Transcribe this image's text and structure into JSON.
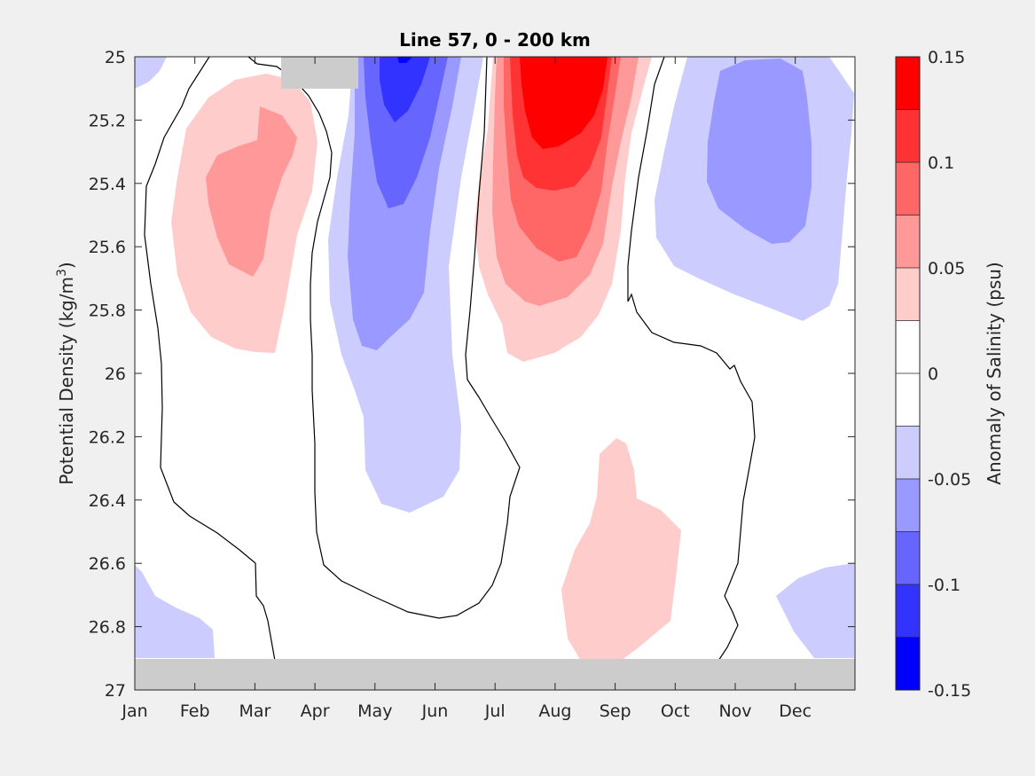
{
  "chart_data": {
    "type": "contour",
    "title": "Line 57, 0 - 200 km",
    "xlabel": "",
    "ylabel_prefix": "Potential Density (kg/m",
    "ylabel_sup": "3",
    "ylabel_suffix": ")",
    "x_ticks": [
      "Jan",
      "Feb",
      "Mar",
      "Apr",
      "May",
      "Jun",
      "Jul",
      "Aug",
      "Sep",
      "Oct",
      "Nov",
      "Dec"
    ],
    "y_ticks": [
      "25",
      "25.2",
      "25.4",
      "25.6",
      "25.8",
      "26",
      "26.2",
      "26.4",
      "26.6",
      "26.8",
      "27"
    ],
    "ylim": [
      25,
      27
    ],
    "y_reversed": true,
    "colorbar": {
      "label": "Anomaly of Salinity (psu)",
      "ticks": [
        "0.15",
        "0.1",
        "0.05",
        "0",
        "-0.05",
        "-0.1",
        "-0.15"
      ],
      "range": [
        -0.15,
        0.15
      ],
      "levels": 12,
      "colors": [
        "#ff0000",
        "#ff3333",
        "#ff6666",
        "#ff9999",
        "#ffcccc",
        "#ffffff",
        "#ffffff",
        "#ccccff",
        "#9999ff",
        "#6666ff",
        "#3333ff",
        "#0000ff"
      ]
    },
    "regions": [
      {
        "name": "positive-anomaly-feb-mar",
        "peak_month": "Mar",
        "density_range": [
          25.1,
          25.95
        ],
        "peak_value": 0.075
      },
      {
        "name": "negative-anomaly-may",
        "peak_month": "May",
        "density_range": [
          25.0,
          26.45
        ],
        "peak_value": -0.125
      },
      {
        "name": "positive-anomaly-aug",
        "peak_month": "Aug",
        "density_range": [
          25.0,
          26.0
        ],
        "peak_value": 0.15
      },
      {
        "name": "negative-anomaly-nov-dec",
        "peak_month": "Nov",
        "density_range": [
          25.0,
          25.85
        ],
        "peak_value": -0.075
      },
      {
        "name": "positive-anomaly-sep-deep",
        "peak_month": "Sep",
        "density_range": [
          26.2,
          26.9
        ],
        "peak_value": 0.03
      },
      {
        "name": "negative-anomaly-jan-deep",
        "peak_month": "Jan",
        "density_range": [
          26.6,
          26.9
        ],
        "peak_value": -0.03
      },
      {
        "name": "negative-anomaly-dec-deep",
        "peak_month": "Dec",
        "density_range": [
          26.6,
          26.9
        ],
        "peak_value": -0.03
      }
    ],
    "masked": [
      {
        "name": "no-data-bottom",
        "density_range": [
          26.9,
          27.0
        ]
      },
      {
        "name": "no-data-top-mar-apr",
        "density_range": [
          25.0,
          25.1
        ]
      }
    ],
    "mask_color": "#cccccc",
    "zero_contour_color": "#000000"
  }
}
